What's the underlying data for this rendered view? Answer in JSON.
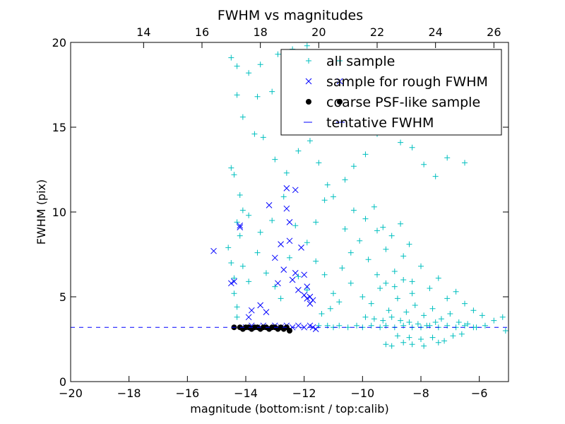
{
  "chart_data": {
    "type": "scatter",
    "title": "FWHM vs magnitudes",
    "xlabel": "magnitude (bottom:isnt / top:calib)",
    "ylabel": "FWHM (pix)",
    "xlim": [
      -20,
      -5
    ],
    "ylim": [
      0,
      20
    ],
    "x_ticks": [
      -20,
      -18,
      -16,
      -14,
      -12,
      -10,
      -8,
      -6
    ],
    "x_tick_labels": [
      "−20",
      "−18",
      "−16",
      "−14",
      "−12",
      "−10",
      "−8",
      "−6"
    ],
    "y_ticks": [
      0,
      5,
      10,
      15,
      20
    ],
    "y_tick_labels": [
      "0",
      "5",
      "10",
      "15",
      "20"
    ],
    "top_axis": {
      "offset": 31.5,
      "ticks": [
        14,
        16,
        18,
        20,
        22,
        24,
        26
      ],
      "tick_labels": [
        "14",
        "16",
        "18",
        "20",
        "22",
        "24",
        "26"
      ]
    },
    "grid": false,
    "legend_position": "top-right",
    "series": [
      {
        "name": "all sample",
        "marker": "plus",
        "color": "#00bfbf",
        "points": [
          [
            -14.5,
            19.1
          ],
          [
            -14.3,
            18.6
          ],
          [
            -13.9,
            18.2
          ],
          [
            -13.5,
            18.7
          ],
          [
            -12.9,
            19.3
          ],
          [
            -12.4,
            19.6
          ],
          [
            -11.9,
            19.8
          ],
          [
            -14.3,
            16.9
          ],
          [
            -14.1,
            15.6
          ],
          [
            -13.6,
            16.8
          ],
          [
            -13.1,
            17.1
          ],
          [
            -12.5,
            16.4
          ],
          [
            -14.5,
            12.6
          ],
          [
            -14.4,
            12.2
          ],
          [
            -14.2,
            11.0
          ],
          [
            -14.1,
            10.1
          ],
          [
            -13.7,
            14.6
          ],
          [
            -13.4,
            14.4
          ],
          [
            -13.0,
            13.1
          ],
          [
            -12.6,
            12.3
          ],
          [
            -12.2,
            13.6
          ],
          [
            -11.8,
            14.2
          ],
          [
            -11.5,
            12.9
          ],
          [
            -11.2,
            11.6
          ],
          [
            -14.3,
            9.4
          ],
          [
            -14.2,
            8.6
          ],
          [
            -13.9,
            9.8
          ],
          [
            -13.5,
            8.8
          ],
          [
            -13.1,
            9.5
          ],
          [
            -12.7,
            10.9
          ],
          [
            -12.3,
            9.2
          ],
          [
            -11.9,
            8.2
          ],
          [
            -11.6,
            9.4
          ],
          [
            -11.3,
            10.7
          ],
          [
            -11.0,
            10.9
          ],
          [
            -10.6,
            11.9
          ],
          [
            -10.3,
            12.7
          ],
          [
            -9.9,
            13.4
          ],
          [
            -9.5,
            14.6
          ],
          [
            -9.1,
            15.2
          ],
          [
            -8.7,
            14.1
          ],
          [
            -8.3,
            13.8
          ],
          [
            -7.9,
            12.8
          ],
          [
            -7.5,
            12.1
          ],
          [
            -7.1,
            13.2
          ],
          [
            -6.5,
            12.9
          ],
          [
            -9.0,
            16.8
          ],
          [
            -8.5,
            17.5
          ],
          [
            -8.0,
            18.6
          ],
          [
            -7.6,
            19.4
          ],
          [
            -10.2,
            16.1
          ],
          [
            -10.8,
            15.1
          ],
          [
            -11.4,
            17.2
          ],
          [
            -14.6,
            7.9
          ],
          [
            -14.5,
            7.0
          ],
          [
            -14.4,
            6.1
          ],
          [
            -14.4,
            5.2
          ],
          [
            -14.3,
            4.4
          ],
          [
            -14.3,
            3.8
          ],
          [
            -14.1,
            6.8
          ],
          [
            -13.9,
            5.9
          ],
          [
            -13.6,
            7.6
          ],
          [
            -13.3,
            6.4
          ],
          [
            -13.0,
            5.6
          ],
          [
            -12.8,
            4.9
          ],
          [
            -12.5,
            7.3
          ],
          [
            -12.2,
            6.2
          ],
          [
            -11.9,
            5.4
          ],
          [
            -11.6,
            7.1
          ],
          [
            -11.3,
            6.3
          ],
          [
            -11.0,
            5.2
          ],
          [
            -10.7,
            6.7
          ],
          [
            -10.4,
            7.6
          ],
          [
            -10.1,
            8.3
          ],
          [
            -9.8,
            7.2
          ],
          [
            -9.5,
            8.9
          ],
          [
            -9.2,
            7.8
          ],
          [
            -8.9,
            6.5
          ],
          [
            -8.6,
            7.4
          ],
          [
            -8.3,
            5.9
          ],
          [
            -8.0,
            6.8
          ],
          [
            -7.7,
            5.5
          ],
          [
            -7.4,
            6.1
          ],
          [
            -7.1,
            4.9
          ],
          [
            -6.8,
            5.3
          ],
          [
            -6.5,
            4.6
          ],
          [
            -6.2,
            4.2
          ],
          [
            -5.9,
            3.9
          ],
          [
            -5.5,
            3.6
          ],
          [
            -5.2,
            3.8
          ],
          [
            -5.1,
            3.0
          ],
          [
            -9.9,
            9.6
          ],
          [
            -9.6,
            10.3
          ],
          [
            -9.3,
            9.1
          ],
          [
            -9.0,
            8.6
          ],
          [
            -8.7,
            9.3
          ],
          [
            -8.4,
            8.1
          ],
          [
            -10.3,
            10.1
          ],
          [
            -10.6,
            9.0
          ],
          [
            -10.0,
            5.0
          ],
          [
            -9.7,
            4.6
          ],
          [
            -9.4,
            5.5
          ],
          [
            -9.1,
            4.2
          ],
          [
            -8.8,
            4.9
          ],
          [
            -8.5,
            4.1
          ],
          [
            -8.2,
            4.5
          ],
          [
            -7.9,
            3.9
          ],
          [
            -7.6,
            4.3
          ],
          [
            -7.3,
            3.7
          ],
          [
            -7.0,
            4.0
          ],
          [
            -6.7,
            3.5
          ],
          [
            -6.4,
            3.4
          ],
          [
            -6.1,
            3.2
          ],
          [
            -5.8,
            3.3
          ],
          [
            -9.5,
            6.3
          ],
          [
            -9.2,
            5.8
          ],
          [
            -8.9,
            5.6
          ],
          [
            -8.6,
            6.0
          ],
          [
            -8.3,
            5.2
          ],
          [
            -10.4,
            5.8
          ],
          [
            -10.8,
            4.7
          ],
          [
            -11.1,
            4.3
          ],
          [
            -11.4,
            4.0
          ],
          [
            -9.0,
            3.8
          ],
          [
            -8.7,
            3.6
          ],
          [
            -8.4,
            3.5
          ],
          [
            -8.1,
            3.4
          ],
          [
            -7.8,
            3.3
          ],
          [
            -7.5,
            3.5
          ],
          [
            -9.3,
            3.6
          ],
          [
            -9.6,
            3.7
          ],
          [
            -9.9,
            3.8
          ],
          [
            -8.8,
            2.7
          ],
          [
            -8.4,
            2.6
          ],
          [
            -8.0,
            2.5
          ],
          [
            -7.6,
            2.6
          ],
          [
            -7.2,
            2.4
          ],
          [
            -6.9,
            2.7
          ],
          [
            -6.6,
            2.8
          ],
          [
            -8.6,
            2.3
          ],
          [
            -9.2,
            2.2
          ],
          [
            -9.0,
            2.1
          ],
          [
            -8.3,
            2.2
          ],
          [
            -7.9,
            2.1
          ],
          [
            -7.4,
            2.3
          ],
          [
            -11.5,
            3.3
          ],
          [
            -11.2,
            3.3
          ],
          [
            -11.0,
            3.2
          ],
          [
            -10.8,
            3.3
          ],
          [
            -10.5,
            3.2
          ],
          [
            -10.2,
            3.3
          ],
          [
            -10.0,
            3.2
          ],
          [
            -9.7,
            3.3
          ],
          [
            -9.4,
            3.2
          ],
          [
            -9.2,
            3.3
          ],
          [
            -8.9,
            3.2
          ],
          [
            -8.6,
            3.3
          ],
          [
            -8.3,
            3.2
          ],
          [
            -8.0,
            3.2
          ],
          [
            -7.7,
            3.3
          ],
          [
            -7.4,
            3.2
          ],
          [
            -7.1,
            3.3
          ],
          [
            -6.8,
            3.2
          ],
          [
            -6.5,
            3.3
          ],
          [
            -6.2,
            3.2
          ]
        ]
      },
      {
        "name": "sample for rough FWHM",
        "marker": "x",
        "color": "#0000ff",
        "points": [
          [
            -15.1,
            7.7
          ],
          [
            -14.5,
            5.8
          ],
          [
            -14.4,
            5.9
          ],
          [
            -14.2,
            9.2
          ],
          [
            -14.2,
            9.1
          ],
          [
            -13.9,
            3.8
          ],
          [
            -13.8,
            4.2
          ],
          [
            -13.5,
            4.5
          ],
          [
            -13.3,
            4.1
          ],
          [
            -13.2,
            10.4
          ],
          [
            -13.0,
            7.3
          ],
          [
            -12.9,
            5.8
          ],
          [
            -12.8,
            8.1
          ],
          [
            -12.7,
            6.6
          ],
          [
            -12.6,
            10.2
          ],
          [
            -12.6,
            11.4
          ],
          [
            -12.5,
            9.4
          ],
          [
            -12.5,
            8.3
          ],
          [
            -12.4,
            6.0
          ],
          [
            -12.3,
            6.4
          ],
          [
            -12.3,
            11.3
          ],
          [
            -12.2,
            5.4
          ],
          [
            -12.1,
            7.9
          ],
          [
            -12.0,
            6.3
          ],
          [
            -12.0,
            5.1
          ],
          [
            -11.9,
            4.9
          ],
          [
            -11.9,
            5.6
          ],
          [
            -11.8,
            5.0
          ],
          [
            -11.8,
            4.6
          ],
          [
            -11.7,
            4.8
          ],
          [
            -14.0,
            3.2
          ],
          [
            -13.8,
            3.3
          ],
          [
            -13.6,
            3.2
          ],
          [
            -13.4,
            3.3
          ],
          [
            -13.2,
            3.2
          ],
          [
            -13.0,
            3.3
          ],
          [
            -12.8,
            3.2
          ],
          [
            -12.6,
            3.3
          ],
          [
            -12.4,
            3.2
          ],
          [
            -12.2,
            3.3
          ],
          [
            -12.0,
            3.2
          ],
          [
            -11.8,
            3.3
          ],
          [
            -11.7,
            3.2
          ],
          [
            -11.6,
            3.1
          ]
        ]
      },
      {
        "name": "coarse PSF-like sample",
        "marker": "circle",
        "color": "#000000",
        "points": [
          [
            -14.4,
            3.2
          ],
          [
            -14.2,
            3.2
          ],
          [
            -14.1,
            3.1
          ],
          [
            -14.0,
            3.2
          ],
          [
            -13.9,
            3.2
          ],
          [
            -13.8,
            3.1
          ],
          [
            -13.7,
            3.2
          ],
          [
            -13.6,
            3.2
          ],
          [
            -13.5,
            3.1
          ],
          [
            -13.4,
            3.2
          ],
          [
            -13.3,
            3.2
          ],
          [
            -13.2,
            3.1
          ],
          [
            -13.1,
            3.2
          ],
          [
            -13.0,
            3.2
          ],
          [
            -12.9,
            3.1
          ],
          [
            -12.8,
            3.2
          ],
          [
            -12.7,
            3.1
          ],
          [
            -12.6,
            3.2
          ],
          [
            -12.5,
            3.0
          ]
        ]
      },
      {
        "name": "tentative FWHM",
        "marker": "dashed-line",
        "color": "#0000ff",
        "y": 3.2
      }
    ]
  }
}
